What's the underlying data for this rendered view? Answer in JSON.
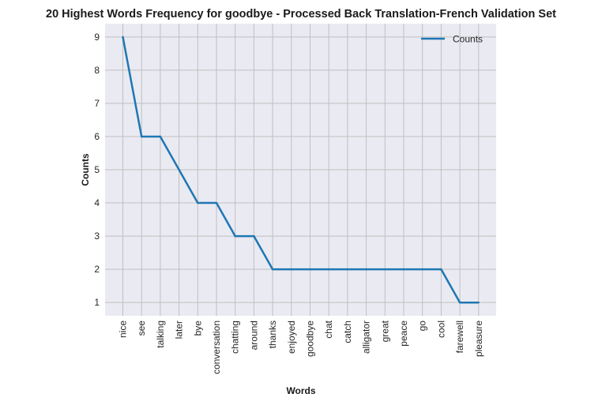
{
  "chart_data": {
    "type": "line",
    "title": "20 Highest Words Frequency for goodbye - Processed Back Translation-French Validation Set",
    "xlabel": "Words",
    "ylabel": "Counts",
    "categories": [
      "nice",
      "see",
      "talking",
      "later",
      "bye",
      "conversation",
      "chatting",
      "around",
      "thanks",
      "enjoyed",
      "goodbye",
      "chat",
      "catch",
      "alligator",
      "great",
      "peace",
      "go",
      "cool",
      "farewell",
      "pleasure"
    ],
    "series": [
      {
        "name": "Counts",
        "values": [
          9,
          6,
          6,
          5,
          4,
          4,
          3,
          3,
          2,
          2,
          2,
          2,
          2,
          2,
          2,
          2,
          2,
          2,
          1,
          1
        ]
      }
    ],
    "ylim": [
      0.6,
      9.4
    ],
    "yticks": [
      1,
      2,
      3,
      4,
      5,
      6,
      7,
      8,
      9
    ],
    "grid": true,
    "legend_position": "top-right",
    "colors": {
      "background": "#eaeaf2",
      "grid": "#c0c0c0",
      "line": "#1f77b4"
    }
  }
}
